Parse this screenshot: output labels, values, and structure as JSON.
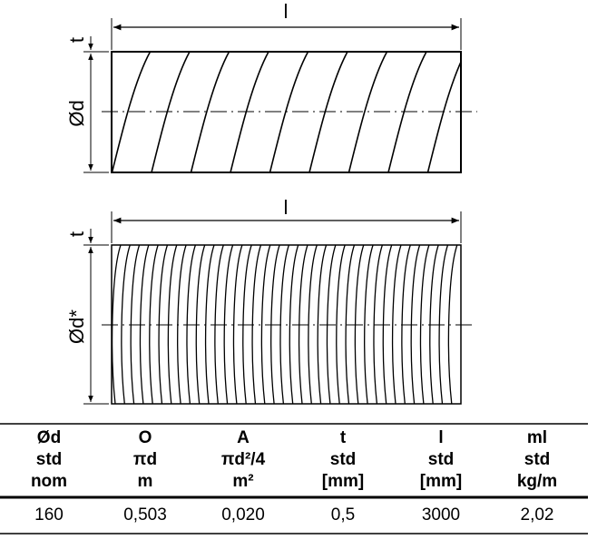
{
  "drawing_top": {
    "length_label": "l",
    "thickness_label": "t",
    "diameter_label": "Ød"
  },
  "drawing_bottom": {
    "length_label": "l",
    "thickness_label": "t",
    "diameter_label": "Ød*"
  },
  "table": {
    "header": [
      [
        "Ød",
        "std",
        "nom"
      ],
      [
        "O",
        "πd",
        "m"
      ],
      [
        "A",
        "πd²/4",
        "m²"
      ],
      [
        "t",
        "std",
        "[mm]"
      ],
      [
        "l",
        "std",
        "[mm]"
      ],
      [
        "ml",
        "std",
        "kg/m"
      ]
    ],
    "rows": [
      [
        "160",
        "0,503",
        "0,020",
        "0,5",
        "3000",
        "2,02"
      ]
    ]
  }
}
